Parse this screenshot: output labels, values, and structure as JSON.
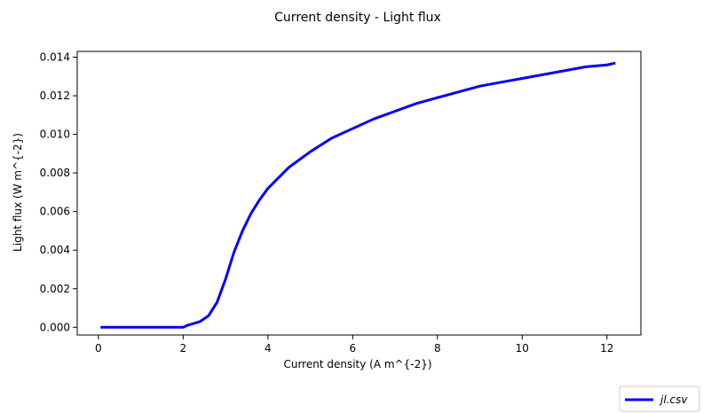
{
  "chart_data": {
    "type": "line",
    "title": "Current density - Light flux",
    "xlabel": "Current density (A m^{-2})",
    "ylabel": "Light flux (W m^{-2})",
    "xlim": [
      -0.5,
      12.8
    ],
    "ylim": [
      -0.0004,
      0.0143
    ],
    "xticks": [
      0,
      2,
      4,
      6,
      8,
      10,
      12
    ],
    "xtick_labels": [
      "0",
      "2",
      "4",
      "6",
      "8",
      "10",
      "12"
    ],
    "yticks": [
      0.0,
      0.002,
      0.004,
      0.006,
      0.008,
      0.01,
      0.012,
      0.014
    ],
    "ytick_labels": [
      "0.000",
      "0.002",
      "0.004",
      "0.006",
      "0.008",
      "0.010",
      "0.012",
      "0.014"
    ],
    "grid": false,
    "legend_position": "bottom-right",
    "series": [
      {
        "name": "jl.csv",
        "color": "#0000ff",
        "x": [
          0.05,
          1.0,
          2.0,
          2.1,
          2.4,
          2.6,
          2.8,
          3.0,
          3.2,
          3.4,
          3.6,
          3.8,
          4.0,
          4.5,
          5.0,
          5.5,
          6.0,
          6.5,
          7.0,
          7.5,
          8.0,
          8.5,
          9.0,
          9.5,
          10.0,
          10.5,
          11.0,
          11.5,
          12.0,
          12.2
        ],
        "y": [
          0.0,
          0.0,
          0.0,
          0.0001,
          0.0003,
          0.0006,
          0.0013,
          0.0025,
          0.0039,
          0.005,
          0.0059,
          0.0066,
          0.0072,
          0.0083,
          0.0091,
          0.0098,
          0.0103,
          0.0108,
          0.0112,
          0.0116,
          0.0119,
          0.0122,
          0.0125,
          0.0127,
          0.0129,
          0.0131,
          0.0133,
          0.0135,
          0.0136,
          0.0137
        ]
      }
    ]
  }
}
